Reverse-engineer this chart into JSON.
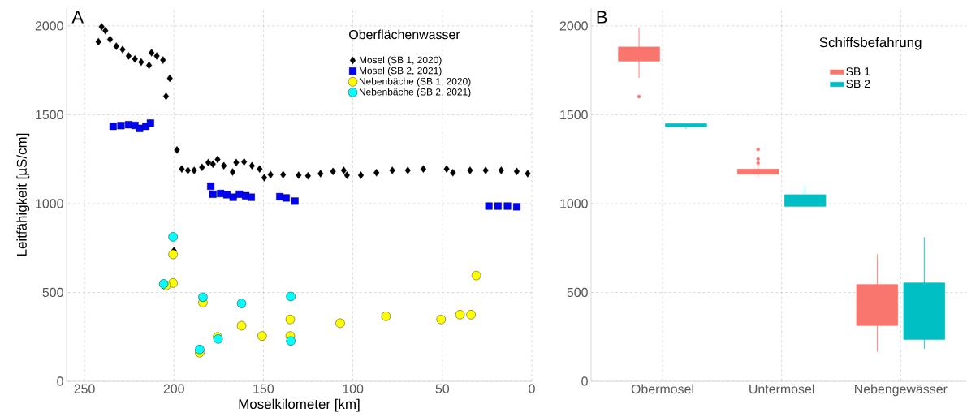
{
  "chart_data": [
    {
      "type": "scatter",
      "title": "A",
      "xlabel": "Moselkilometer [km]",
      "ylabel": "Leitfähigkeit [µS/cm]",
      "legend_title": "Oberflächenwasser",
      "xlim": [
        260,
        0
      ],
      "xticks": [
        250,
        200,
        150,
        100,
        50,
        0
      ],
      "ylim": [
        0,
        2100
      ],
      "yticks": [
        0,
        500,
        1000,
        1500,
        2000
      ],
      "grid": true,
      "legend": "top right",
      "series": [
        {
          "name": "Mosel (SB 1, 2020)",
          "color": "#000000",
          "marker": "diamond",
          "x": [
            242.2,
            240.4,
            238.3,
            235.7,
            232.2,
            228.7,
            225.3,
            221.8,
            218.3,
            213.9,
            212.5,
            209.6,
            206.1,
            204.4,
            202.3,
            200,
            198.3,
            195.6,
            192.2,
            188.7,
            184.3,
            180.8,
            178.2,
            175.6,
            172.1,
            167.2,
            165.2,
            160.8,
            156.4,
            152.1,
            149.5,
            146.0,
            139.0,
            130.3,
            125.1,
            118.1,
            111.1,
            105.1,
            103.3,
            95.5,
            86.8,
            78.0,
            69.3,
            60.6,
            47.6,
            44.1,
            34.5,
            25.8,
            17.1,
            8.4,
            2.3
          ],
          "values": [
            1911,
            1995,
            1973,
            1924,
            1885,
            1867,
            1831,
            1814,
            1796,
            1778,
            1849,
            1831,
            1808,
            1604,
            1705,
            735,
            1302,
            1195,
            1187,
            1187,
            1204,
            1231,
            1222,
            1249,
            1213,
            1178,
            1231,
            1235,
            1213,
            1195,
            1146,
            1163,
            1163,
            1160,
            1156,
            1169,
            1181,
            1187,
            1160,
            1160,
            1174,
            1187,
            1187,
            1195,
            1195,
            1174,
            1187,
            1187,
            1187,
            1181,
            1169
          ]
        },
        {
          "name": "Mosel (SB 2, 2021)",
          "color": "#0000ff",
          "marker": "square",
          "x": [
            234.0,
            229.6,
            225.3,
            221.8,
            219.2,
            215.7,
            213.1,
            179.4,
            178.2,
            173.9,
            170.4,
            166.9,
            163.4,
            159.9,
            156.8,
            140.8,
            137.3,
            132.4,
            24.0,
            18.9,
            13.6,
            8.4
          ],
          "values": [
            1435,
            1439,
            1444,
            1440,
            1423,
            1435,
            1453,
            1098,
            1053,
            1057,
            1050,
            1036,
            1053,
            1044,
            1036,
            1039,
            1032,
            1014,
            986,
            986,
            986,
            982
          ]
        },
        {
          "name": "Nebenbäche (SB 1, 2020)",
          "color": "#ffff00",
          "marker": "circle",
          "x": [
            200.5,
            200.5,
            204.4,
            183.8,
            185.6,
            175.6,
            162.2,
            150.7,
            135.0,
            135.0,
            107.1,
            81.5,
            50.7,
            40.1,
            34.0,
            31.0
          ],
          "values": [
            714,
            553,
            539,
            443,
            161,
            250,
            313,
            255,
            348,
            255,
            327,
            366,
            348,
            375,
            375,
            595
          ]
        },
        {
          "name": "Nebenbäche (SB 2, 2021)",
          "color": "#00ffff",
          "marker": "circle",
          "x": [
            200.5,
            205.7,
            183.8,
            185.6,
            175.3,
            162.2,
            134.7,
            134.7
          ],
          "values": [
            813,
            548,
            473,
            179,
            238,
            438,
            477,
            227
          ]
        }
      ]
    },
    {
      "type": "box",
      "title": "B",
      "legend_title": "Schiffsbefahrung",
      "categories": [
        "Obermosel",
        "Untermosel",
        "Nebengewässer"
      ],
      "ylim": [
        0,
        2100
      ],
      "yticks": [
        0,
        500,
        1000,
        1500,
        2000
      ],
      "grid": true,
      "legend": "top right",
      "series": [
        {
          "name": "SB 1",
          "color": "#f8766d",
          "boxes": [
            {
              "low": 1707,
              "q1": 1802,
              "median": 1840,
              "q3": 1881,
              "high": 1989,
              "outliers": [
                1602
              ]
            },
            {
              "low": 1147,
              "q1": 1166,
              "median": 1180,
              "q3": 1194,
              "high": 1223,
              "outliers": [
                1305,
                1251,
                1228
              ]
            },
            {
              "low": 165,
              "q1": 314,
              "median": 400,
              "q3": 544,
              "high": 715
            }
          ]
        },
        {
          "name": "SB 2",
          "color": "#00bfc4",
          "boxes": [
            {
              "low": 1421,
              "q1": 1432,
              "median": 1440,
              "q3": 1449,
              "high": 1449
            },
            {
              "low": 985,
              "q1": 985,
              "median": 1000,
              "q3": 1050,
              "high": 1100
            },
            {
              "low": 182,
              "q1": 236,
              "median": 440,
              "q3": 553,
              "high": 811
            }
          ]
        }
      ]
    }
  ]
}
